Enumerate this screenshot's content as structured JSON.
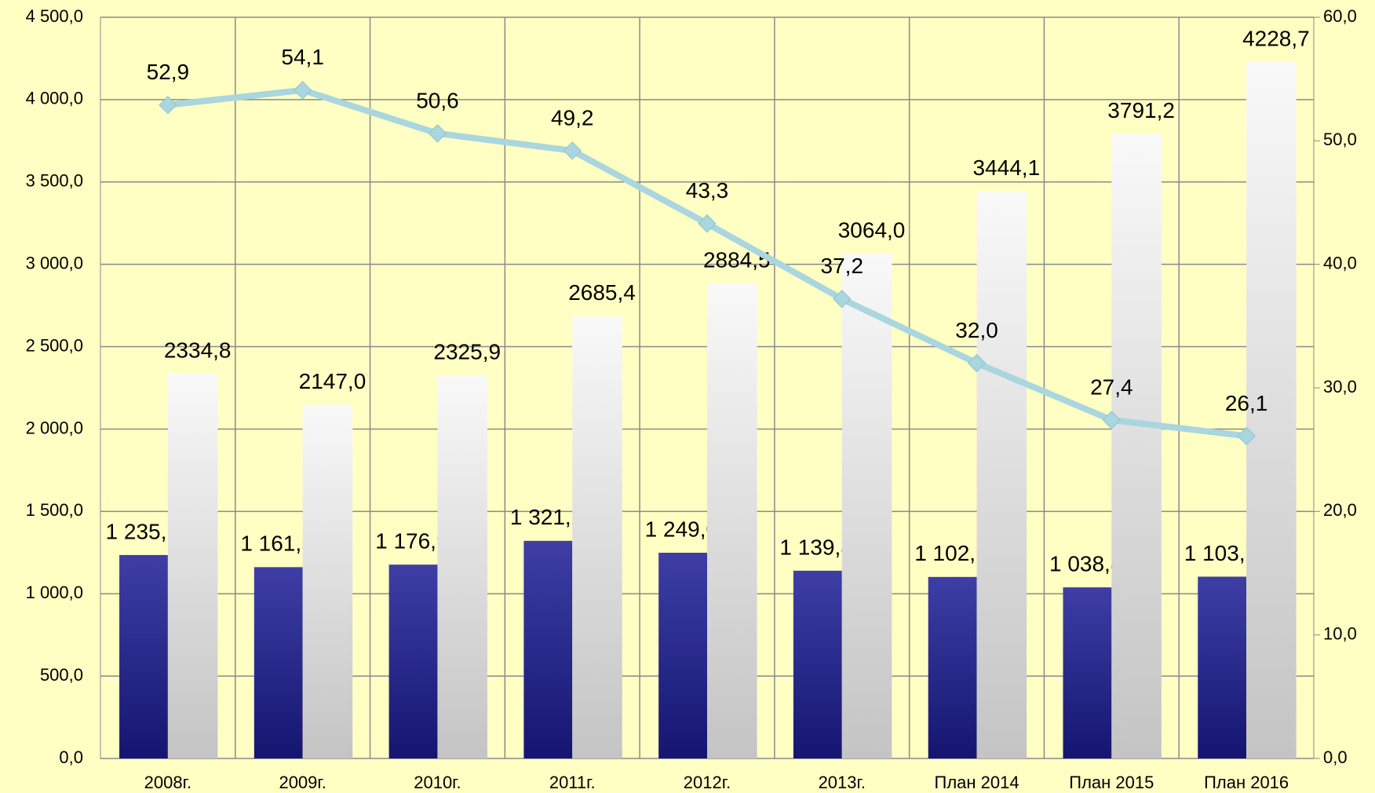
{
  "chart_data": {
    "type": "bar",
    "categories": [
      "2008г.",
      "2009г.",
      "2010г.",
      "2011г.",
      "2012г.",
      "2013г.",
      "План 2014",
      "План 2015",
      "План 2016"
    ],
    "series": [
      {
        "type": "bar",
        "color": "#1c1c96",
        "values": [
          1235.1,
          1161.5,
          1176.9,
          1321.2,
          1249.0,
          1139.8,
          1102.1,
          1038.8,
          1103.7
        ],
        "value_labels": [
          "1 235,1",
          "1 161,5",
          "1 176,9",
          "1 321,2",
          "1 249,0",
          "1 139,8",
          "1 102,1",
          "1 038,8",
          "1 103,7"
        ]
      },
      {
        "type": "bar",
        "color": "#c4c4c4",
        "values": [
          2334.8,
          2147.0,
          2325.9,
          2685.4,
          2884.5,
          3064.0,
          3444.1,
          3791.2,
          4228.7
        ],
        "value_labels": [
          "2334,8",
          "2147,0",
          "2325,9",
          "2685,4",
          "2884,5",
          "3064,0",
          "3444,1",
          "3791,2",
          "4228,7"
        ]
      },
      {
        "type": "line",
        "axis": "y2",
        "color": "#a9d6df",
        "values": [
          52.9,
          54.1,
          50.6,
          49.2,
          43.3,
          37.2,
          32.0,
          27.4,
          26.1
        ],
        "value_labels": [
          "52,9",
          "54,1",
          "50,6",
          "49,2",
          "43,3",
          "37,2",
          "32,0",
          "27,4",
          "26,1"
        ]
      }
    ],
    "ylim": [
      0,
      4500
    ],
    "yticks": [
      {
        "value": 0,
        "label": "0,0"
      },
      {
        "value": 500,
        "label": "500,0"
      },
      {
        "value": 1000,
        "label": "1 000,0"
      },
      {
        "value": 1500,
        "label": "1 500,0"
      },
      {
        "value": 2000,
        "label": "2 000,0"
      },
      {
        "value": 2500,
        "label": "2 500,0"
      },
      {
        "value": 3000,
        "label": "3 000,0"
      },
      {
        "value": 3500,
        "label": "3 500,0"
      },
      {
        "value": 4000,
        "label": "4 000,0"
      },
      {
        "value": 4500,
        "label": "4 500,0"
      }
    ],
    "y2lim": [
      0,
      60
    ],
    "y2ticks": [
      {
        "value": 0,
        "label": "0,0"
      },
      {
        "value": 10,
        "label": "10,0"
      },
      {
        "value": 20,
        "label": "20,0"
      },
      {
        "value": 30,
        "label": "30,0"
      },
      {
        "value": 40,
        "label": "40,0"
      },
      {
        "value": 50,
        "label": "50,0"
      },
      {
        "value": 60,
        "label": "60,0"
      }
    ],
    "grid": true
  }
}
